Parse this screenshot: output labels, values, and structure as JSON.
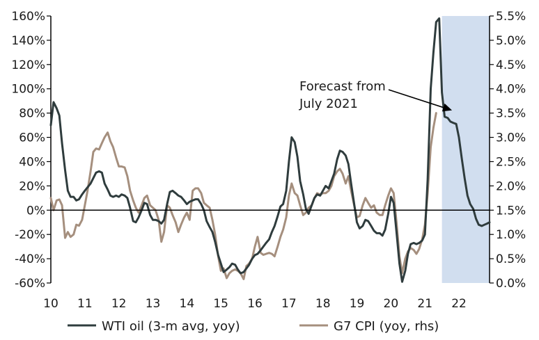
{
  "chart_data": {
    "type": "line",
    "title": "",
    "xlabel": "",
    "x_tick_labels": [
      "10",
      "11",
      "12",
      "13",
      "14",
      "15",
      "16",
      "17",
      "18",
      "19",
      "20",
      "21",
      "22"
    ],
    "x_range": [
      2010,
      2022.9
    ],
    "y_left": {
      "range": [
        -60,
        160
      ],
      "ticks": [
        -60,
        -40,
        -20,
        0,
        20,
        40,
        60,
        80,
        100,
        120,
        140,
        160
      ],
      "tick_labels": [
        "-60%",
        "-40%",
        "-20%",
        "0%",
        "20%",
        "40%",
        "60%",
        "80%",
        "100%",
        "120%",
        "140%",
        "160%"
      ]
    },
    "y_right": {
      "range": [
        0.0,
        5.5
      ],
      "ticks": [
        0.0,
        0.5,
        1.0,
        1.5,
        2.0,
        2.5,
        3.0,
        3.5,
        4.0,
        4.5,
        5.0,
        5.5
      ],
      "tick_labels": [
        "0.0%",
        "0.5%",
        "1.0%",
        "1.5%",
        "2.0%",
        "2.5%",
        "3.0%",
        "3.5%",
        "4.0%",
        "4.5%",
        "5.0%",
        "5.5%"
      ]
    },
    "forecast_shading": {
      "from": 2021.5,
      "to": 2022.9,
      "color": "#d1deef"
    },
    "annotation": {
      "lines": [
        "Forecast from",
        "July 2021"
      ],
      "arrow_to": {
        "x": 2021.55,
        "y": 80
      }
    },
    "series": [
      {
        "name": "WTI oil (3-m avg, yoy)",
        "axis": "left",
        "color": "#2f3c3d",
        "points": [
          [
            2010.0,
            70
          ],
          [
            2010.08,
            89
          ],
          [
            2010.17,
            84
          ],
          [
            2010.25,
            78
          ],
          [
            2010.33,
            55
          ],
          [
            2010.42,
            33
          ],
          [
            2010.5,
            16
          ],
          [
            2010.58,
            11
          ],
          [
            2010.67,
            11
          ],
          [
            2010.75,
            8
          ],
          [
            2010.83,
            9
          ],
          [
            2010.92,
            13
          ],
          [
            2011.0,
            16
          ],
          [
            2011.17,
            22
          ],
          [
            2011.33,
            31
          ],
          [
            2011.42,
            32
          ],
          [
            2011.5,
            31
          ],
          [
            2011.58,
            22
          ],
          [
            2011.67,
            17
          ],
          [
            2011.75,
            12
          ],
          [
            2011.83,
            11
          ],
          [
            2011.92,
            12
          ],
          [
            2012.0,
            11
          ],
          [
            2012.08,
            13
          ],
          [
            2012.17,
            12
          ],
          [
            2012.25,
            10
          ],
          [
            2012.33,
            2
          ],
          [
            2012.42,
            -9
          ],
          [
            2012.5,
            -10
          ],
          [
            2012.58,
            -6
          ],
          [
            2012.67,
            0
          ],
          [
            2012.75,
            6
          ],
          [
            2012.83,
            5
          ],
          [
            2012.92,
            -4
          ],
          [
            2013.0,
            -8
          ],
          [
            2013.08,
            -8
          ],
          [
            2013.17,
            -9
          ],
          [
            2013.25,
            -11
          ],
          [
            2013.33,
            -8
          ],
          [
            2013.42,
            5
          ],
          [
            2013.5,
            15
          ],
          [
            2013.58,
            16
          ],
          [
            2013.67,
            14
          ],
          [
            2013.75,
            12
          ],
          [
            2013.83,
            11
          ],
          [
            2013.92,
            8
          ],
          [
            2014.0,
            5
          ],
          [
            2014.08,
            7
          ],
          [
            2014.17,
            8
          ],
          [
            2014.25,
            9
          ],
          [
            2014.33,
            9
          ],
          [
            2014.42,
            5
          ],
          [
            2014.5,
            0
          ],
          [
            2014.58,
            -9
          ],
          [
            2014.67,
            -14
          ],
          [
            2014.75,
            -18
          ],
          [
            2014.83,
            -26
          ],
          [
            2014.92,
            -37
          ],
          [
            2015.0,
            -44
          ],
          [
            2015.08,
            -51
          ],
          [
            2015.17,
            -49
          ],
          [
            2015.25,
            -47
          ],
          [
            2015.33,
            -44
          ],
          [
            2015.42,
            -45
          ],
          [
            2015.5,
            -49
          ],
          [
            2015.58,
            -52
          ],
          [
            2015.67,
            -51
          ],
          [
            2015.75,
            -48
          ],
          [
            2015.83,
            -45
          ],
          [
            2015.92,
            -40
          ],
          [
            2016.0,
            -37
          ],
          [
            2016.08,
            -36
          ],
          [
            2016.17,
            -33
          ],
          [
            2016.25,
            -30
          ],
          [
            2016.33,
            -27
          ],
          [
            2016.42,
            -24
          ],
          [
            2016.5,
            -18
          ],
          [
            2016.58,
            -13
          ],
          [
            2016.67,
            -5
          ],
          [
            2016.75,
            3
          ],
          [
            2016.83,
            5
          ],
          [
            2016.92,
            16
          ],
          [
            2017.0,
            40
          ],
          [
            2017.08,
            60
          ],
          [
            2017.17,
            56
          ],
          [
            2017.25,
            44
          ],
          [
            2017.33,
            24
          ],
          [
            2017.42,
            13
          ],
          [
            2017.5,
            1
          ],
          [
            2017.58,
            -3
          ],
          [
            2017.67,
            4
          ],
          [
            2017.75,
            10
          ],
          [
            2017.83,
            13
          ],
          [
            2017.92,
            12
          ],
          [
            2018.0,
            16
          ],
          [
            2018.08,
            20
          ],
          [
            2018.17,
            18
          ],
          [
            2018.25,
            24
          ],
          [
            2018.33,
            30
          ],
          [
            2018.42,
            42
          ],
          [
            2018.5,
            49
          ],
          [
            2018.58,
            48
          ],
          [
            2018.67,
            45
          ],
          [
            2018.75,
            38
          ],
          [
            2018.83,
            22
          ],
          [
            2018.92,
            5
          ],
          [
            2019.0,
            -10
          ],
          [
            2019.08,
            -15
          ],
          [
            2019.17,
            -13
          ],
          [
            2019.25,
            -8
          ],
          [
            2019.33,
            -9
          ],
          [
            2019.42,
            -13
          ],
          [
            2019.5,
            -17
          ],
          [
            2019.58,
            -19
          ],
          [
            2019.67,
            -19
          ],
          [
            2019.75,
            -21
          ],
          [
            2019.83,
            -16
          ],
          [
            2019.92,
            -3
          ],
          [
            2020.0,
            11
          ],
          [
            2020.08,
            6
          ],
          [
            2020.17,
            -20
          ],
          [
            2020.25,
            -44
          ],
          [
            2020.33,
            -59
          ],
          [
            2020.42,
            -50
          ],
          [
            2020.5,
            -36
          ],
          [
            2020.58,
            -28
          ],
          [
            2020.67,
            -27
          ],
          [
            2020.75,
            -28
          ],
          [
            2020.83,
            -27
          ],
          [
            2020.92,
            -25
          ],
          [
            2021.0,
            -20
          ],
          [
            2021.08,
            25
          ],
          [
            2021.17,
            100
          ],
          [
            2021.25,
            130
          ],
          [
            2021.33,
            155
          ],
          [
            2021.42,
            158
          ],
          [
            2021.5,
            97
          ],
          [
            2021.58,
            77
          ],
          [
            2021.67,
            76
          ],
          [
            2021.75,
            73
          ],
          [
            2021.83,
            72
          ],
          [
            2021.92,
            71
          ],
          [
            2022.0,
            60
          ],
          [
            2022.08,
            43
          ],
          [
            2022.17,
            26
          ],
          [
            2022.25,
            12
          ],
          [
            2022.33,
            5
          ],
          [
            2022.42,
            1
          ],
          [
            2022.5,
            -7
          ],
          [
            2022.58,
            -12
          ],
          [
            2022.67,
            -13
          ],
          [
            2022.75,
            -12
          ],
          [
            2022.83,
            -11
          ],
          [
            2022.9,
            -10
          ]
        ]
      },
      {
        "name": "G7 CPI (yoy, rhs)",
        "axis": "right",
        "color": "#a58f7e",
        "points": [
          [
            2010.0,
            1.75
          ],
          [
            2010.08,
            1.5
          ],
          [
            2010.17,
            1.7
          ],
          [
            2010.25,
            1.72
          ],
          [
            2010.33,
            1.6
          ],
          [
            2010.42,
            0.93
          ],
          [
            2010.5,
            1.05
          ],
          [
            2010.58,
            0.95
          ],
          [
            2010.67,
            1.0
          ],
          [
            2010.75,
            1.2
          ],
          [
            2010.83,
            1.18
          ],
          [
            2010.92,
            1.3
          ],
          [
            2011.0,
            1.6
          ],
          [
            2011.08,
            1.9
          ],
          [
            2011.17,
            2.3
          ],
          [
            2011.25,
            2.7
          ],
          [
            2011.33,
            2.77
          ],
          [
            2011.42,
            2.75
          ],
          [
            2011.5,
            2.88
          ],
          [
            2011.58,
            3.0
          ],
          [
            2011.67,
            3.1
          ],
          [
            2011.75,
            2.92
          ],
          [
            2011.83,
            2.8
          ],
          [
            2011.92,
            2.58
          ],
          [
            2012.0,
            2.4
          ],
          [
            2012.08,
            2.4
          ],
          [
            2012.17,
            2.38
          ],
          [
            2012.25,
            2.2
          ],
          [
            2012.33,
            1.9
          ],
          [
            2012.42,
            1.7
          ],
          [
            2012.5,
            1.55
          ],
          [
            2012.58,
            1.45
          ],
          [
            2012.67,
            1.6
          ],
          [
            2012.75,
            1.75
          ],
          [
            2012.83,
            1.8
          ],
          [
            2012.92,
            1.6
          ],
          [
            2013.0,
            1.55
          ],
          [
            2013.08,
            1.5
          ],
          [
            2013.17,
            1.3
          ],
          [
            2013.25,
            0.85
          ],
          [
            2013.33,
            1.05
          ],
          [
            2013.42,
            1.6
          ],
          [
            2013.5,
            1.55
          ],
          [
            2013.58,
            1.4
          ],
          [
            2013.67,
            1.25
          ],
          [
            2013.75,
            1.05
          ],
          [
            2013.83,
            1.2
          ],
          [
            2013.92,
            1.35
          ],
          [
            2014.0,
            1.45
          ],
          [
            2014.08,
            1.3
          ],
          [
            2014.17,
            1.9
          ],
          [
            2014.25,
            1.95
          ],
          [
            2014.33,
            1.95
          ],
          [
            2014.42,
            1.85
          ],
          [
            2014.5,
            1.65
          ],
          [
            2014.58,
            1.6
          ],
          [
            2014.67,
            1.55
          ],
          [
            2014.75,
            1.3
          ],
          [
            2014.83,
            1.0
          ],
          [
            2014.92,
            0.55
          ],
          [
            2015.0,
            0.25
          ],
          [
            2015.08,
            0.3
          ],
          [
            2015.17,
            0.1
          ],
          [
            2015.25,
            0.2
          ],
          [
            2015.33,
            0.25
          ],
          [
            2015.42,
            0.28
          ],
          [
            2015.5,
            0.25
          ],
          [
            2015.58,
            0.2
          ],
          [
            2015.67,
            0.08
          ],
          [
            2015.75,
            0.35
          ],
          [
            2015.83,
            0.4
          ],
          [
            2015.92,
            0.5
          ],
          [
            2016.0,
            0.75
          ],
          [
            2016.08,
            0.95
          ],
          [
            2016.17,
            0.62
          ],
          [
            2016.25,
            0.58
          ],
          [
            2016.33,
            0.6
          ],
          [
            2016.42,
            0.62
          ],
          [
            2016.5,
            0.6
          ],
          [
            2016.58,
            0.55
          ],
          [
            2016.67,
            0.75
          ],
          [
            2016.75,
            0.95
          ],
          [
            2016.83,
            1.1
          ],
          [
            2016.92,
            1.35
          ],
          [
            2017.0,
            1.8
          ],
          [
            2017.08,
            2.05
          ],
          [
            2017.17,
            1.85
          ],
          [
            2017.25,
            1.8
          ],
          [
            2017.33,
            1.6
          ],
          [
            2017.42,
            1.4
          ],
          [
            2017.5,
            1.45
          ],
          [
            2017.58,
            1.55
          ],
          [
            2017.67,
            1.6
          ],
          [
            2017.75,
            1.75
          ],
          [
            2017.83,
            1.85
          ],
          [
            2017.92,
            1.82
          ],
          [
            2018.0,
            1.85
          ],
          [
            2018.08,
            1.85
          ],
          [
            2018.17,
            1.9
          ],
          [
            2018.25,
            2.0
          ],
          [
            2018.33,
            2.2
          ],
          [
            2018.42,
            2.3
          ],
          [
            2018.5,
            2.35
          ],
          [
            2018.58,
            2.25
          ],
          [
            2018.67,
            2.05
          ],
          [
            2018.75,
            2.2
          ],
          [
            2018.83,
            1.9
          ],
          [
            2018.92,
            1.6
          ],
          [
            2019.0,
            1.35
          ],
          [
            2019.08,
            1.38
          ],
          [
            2019.17,
            1.6
          ],
          [
            2019.25,
            1.75
          ],
          [
            2019.33,
            1.65
          ],
          [
            2019.42,
            1.55
          ],
          [
            2019.5,
            1.6
          ],
          [
            2019.58,
            1.45
          ],
          [
            2019.67,
            1.4
          ],
          [
            2019.75,
            1.4
          ],
          [
            2019.83,
            1.6
          ],
          [
            2019.92,
            1.8
          ],
          [
            2020.0,
            1.95
          ],
          [
            2020.08,
            1.85
          ],
          [
            2020.17,
            1.2
          ],
          [
            2020.25,
            0.55
          ],
          [
            2020.33,
            0.2
          ],
          [
            2020.42,
            0.5
          ],
          [
            2020.5,
            0.65
          ],
          [
            2020.58,
            0.72
          ],
          [
            2020.67,
            0.68
          ],
          [
            2020.75,
            0.6
          ],
          [
            2020.83,
            0.7
          ],
          [
            2020.92,
            0.9
          ],
          [
            2021.0,
            1.2
          ],
          [
            2021.08,
            1.85
          ],
          [
            2021.17,
            2.8
          ],
          [
            2021.25,
            3.2
          ],
          [
            2021.33,
            3.5
          ]
        ]
      }
    ],
    "legend": {
      "placement": "bottom-center",
      "entries": [
        "WTI oil (3-m avg, yoy)",
        "G7 CPI (yoy, rhs)"
      ]
    }
  }
}
